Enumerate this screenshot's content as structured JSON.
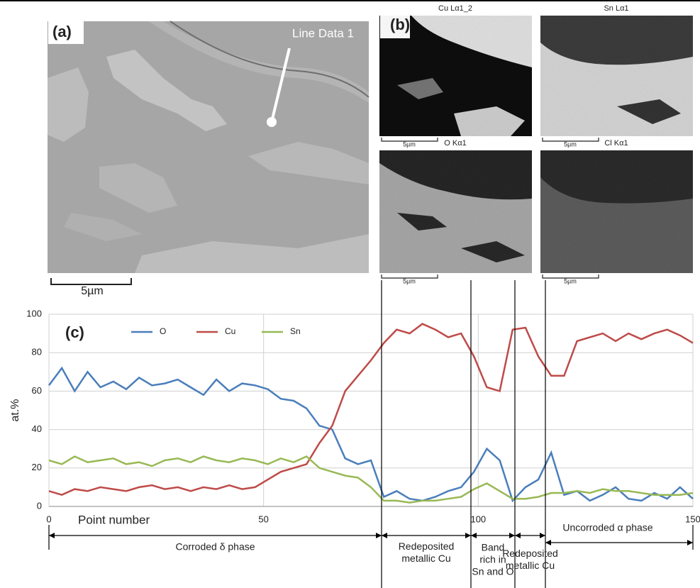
{
  "panel_a": {
    "label": "(a)",
    "annotation": "Line Data 1",
    "scale_bar": "5µm"
  },
  "panel_b": {
    "label": "(b)",
    "maps": [
      {
        "title": "Cu Lα1_2",
        "scale_bar": "5µm"
      },
      {
        "title": "Sn Lα1",
        "scale_bar": "5µm"
      },
      {
        "title": "O Kα1",
        "scale_bar": "5µm"
      },
      {
        "title": "Cl Kα1",
        "scale_bar": "5µm"
      }
    ]
  },
  "chart_data": {
    "type": "line",
    "label": "(c)",
    "x_label": "Point number",
    "y_label": "at.%",
    "x": [
      0,
      3,
      6,
      9,
      12,
      15,
      18,
      21,
      24,
      27,
      30,
      33,
      36,
      39,
      42,
      45,
      48,
      51,
      54,
      57,
      60,
      63,
      66,
      69,
      72,
      75,
      78,
      81,
      84,
      87,
      90,
      93,
      96,
      99,
      102,
      105,
      108,
      111,
      114,
      117,
      120,
      123,
      126,
      129,
      132,
      135,
      138,
      141,
      144,
      147,
      150
    ],
    "series": [
      {
        "name": "O",
        "color": "#4a7ebb",
        "values": [
          63,
          72,
          60,
          70,
          62,
          65,
          61,
          67,
          63,
          64,
          66,
          62,
          58,
          66,
          60,
          64,
          63,
          61,
          56,
          55,
          51,
          42,
          40,
          25,
          22,
          24,
          5,
          8,
          4,
          3,
          5,
          8,
          10,
          18,
          30,
          24,
          3,
          10,
          14,
          28,
          6,
          8,
          3,
          6,
          10,
          4,
          3,
          7,
          4,
          10,
          4
        ]
      },
      {
        "name": "Cu",
        "color": "#be4b48",
        "values": [
          8,
          6,
          9,
          8,
          10,
          9,
          8,
          10,
          11,
          9,
          10,
          8,
          10,
          9,
          11,
          9,
          10,
          14,
          18,
          20,
          22,
          33,
          42,
          60,
          68,
          76,
          85,
          92,
          90,
          95,
          92,
          88,
          90,
          78,
          62,
          60,
          92,
          93,
          78,
          68,
          68,
          86,
          88,
          90,
          86,
          90,
          87,
          90,
          92,
          89,
          85
        ]
      },
      {
        "name": "Sn",
        "color": "#98b954",
        "values": [
          24,
          22,
          26,
          23,
          24,
          25,
          22,
          23,
          21,
          24,
          25,
          23,
          26,
          24,
          23,
          25,
          24,
          22,
          25,
          23,
          26,
          20,
          18,
          16,
          15,
          10,
          3,
          3,
          2,
          3,
          3,
          4,
          5,
          9,
          12,
          8,
          4,
          4,
          5,
          7,
          7,
          8,
          7,
          9,
          8,
          8,
          7,
          6,
          6,
          6,
          7
        ]
      }
    ],
    "xlim": [
      0,
      150
    ],
    "ylim": [
      0,
      100
    ],
    "xticks": [
      0,
      50,
      100,
      150
    ],
    "yticks": [
      0,
      20,
      40,
      60,
      80,
      100
    ],
    "grid": true,
    "legend": "top-left",
    "phases": [
      {
        "lines": [
          "Corroded δ phase"
        ]
      },
      {
        "lines": [
          "Redeposited",
          "metallic Cu"
        ]
      },
      {
        "lines": [
          "Band",
          "rich in",
          "Sn and O"
        ]
      },
      {
        "lines": [
          "Redeposited",
          "metallic Cu"
        ]
      },
      {
        "lines": [
          "Uncorroded α phase"
        ]
      }
    ]
  }
}
